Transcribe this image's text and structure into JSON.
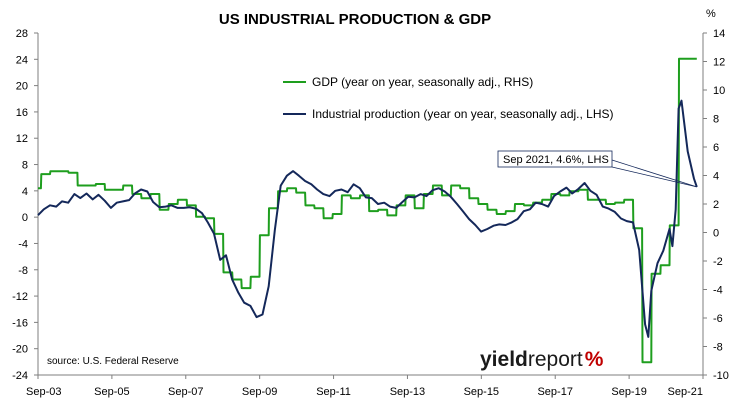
{
  "chart_data": {
    "type": "line",
    "title": "US INDUSTRIAL PRODUCTION & GDP",
    "right_axis_unit": "%",
    "x_tick_labels": [
      "Sep-03",
      "Sep-05",
      "Sep-07",
      "Sep-09",
      "Sep-11",
      "Sep-13",
      "Sep-15",
      "Sep-17",
      "Sep-19",
      "Sep-21"
    ],
    "x_range": [
      2003.67,
      2021.92
    ],
    "left_axis": {
      "ticks": [
        28,
        24,
        20,
        16,
        12,
        8,
        4,
        0,
        -4,
        -8,
        -12,
        -16,
        -20,
        -24
      ],
      "range": [
        -24,
        28
      ]
    },
    "right_axis": {
      "ticks": [
        14,
        12,
        10,
        8,
        6,
        4,
        2,
        0,
        -2,
        -4,
        -6,
        -8,
        -10
      ],
      "range": [
        -10,
        14
      ]
    },
    "legend_position": "top-center",
    "series": [
      {
        "name": "GDP (year on year, seasonally adj., RHS)",
        "axis": "right",
        "color": "#1e9e1e",
        "points": [
          [
            2003.67,
            3.1
          ],
          [
            2003.75,
            3.1
          ],
          [
            2003.76,
            4.1
          ],
          [
            2004.0,
            4.1
          ],
          [
            2004.01,
            4.3
          ],
          [
            2004.25,
            4.3
          ],
          [
            2004.26,
            4.3
          ],
          [
            2004.5,
            4.3
          ],
          [
            2004.51,
            4.2
          ],
          [
            2004.75,
            4.2
          ],
          [
            2004.76,
            3.3
          ],
          [
            2005.0,
            3.3
          ],
          [
            2005.01,
            3.3
          ],
          [
            2005.25,
            3.3
          ],
          [
            2005.26,
            3.4
          ],
          [
            2005.5,
            3.4
          ],
          [
            2005.51,
            3.0
          ],
          [
            2005.75,
            3.0
          ],
          [
            2005.76,
            3.0
          ],
          [
            2006.0,
            3.0
          ],
          [
            2006.01,
            3.3
          ],
          [
            2006.25,
            3.3
          ],
          [
            2006.26,
            2.7
          ],
          [
            2006.5,
            2.7
          ],
          [
            2006.51,
            2.4
          ],
          [
            2006.75,
            2.4
          ],
          [
            2006.76,
            2.7
          ],
          [
            2007.0,
            2.7
          ],
          [
            2007.01,
            1.6
          ],
          [
            2007.25,
            1.6
          ],
          [
            2007.26,
            2.0
          ],
          [
            2007.5,
            2.0
          ],
          [
            2007.51,
            2.3
          ],
          [
            2007.75,
            2.3
          ],
          [
            2007.76,
            1.9
          ],
          [
            2008.0,
            1.9
          ],
          [
            2008.01,
            1.1
          ],
          [
            2008.25,
            1.1
          ],
          [
            2008.26,
            1.0
          ],
          [
            2008.5,
            1.0
          ],
          [
            2008.51,
            -0.1
          ],
          [
            2008.75,
            -0.1
          ],
          [
            2008.76,
            -2.8
          ],
          [
            2009.0,
            -2.8
          ],
          [
            2009.01,
            -3.3
          ],
          [
            2009.25,
            -3.3
          ],
          [
            2009.26,
            -3.9
          ],
          [
            2009.5,
            -3.9
          ],
          [
            2009.51,
            -3.1
          ],
          [
            2009.75,
            -3.1
          ],
          [
            2009.76,
            -0.2
          ],
          [
            2010.0,
            -0.2
          ],
          [
            2010.01,
            1.7
          ],
          [
            2010.25,
            1.7
          ],
          [
            2010.26,
            2.9
          ],
          [
            2010.5,
            2.9
          ],
          [
            2010.51,
            3.1
          ],
          [
            2010.75,
            3.1
          ],
          [
            2010.76,
            2.8
          ],
          [
            2011.0,
            2.8
          ],
          [
            2011.01,
            1.9
          ],
          [
            2011.25,
            1.9
          ],
          [
            2011.26,
            1.7
          ],
          [
            2011.5,
            1.7
          ],
          [
            2011.51,
            1.0
          ],
          [
            2011.75,
            1.0
          ],
          [
            2011.76,
            1.3
          ],
          [
            2012.0,
            1.3
          ],
          [
            2012.01,
            2.6
          ],
          [
            2012.25,
            2.6
          ],
          [
            2012.26,
            2.4
          ],
          [
            2012.5,
            2.4
          ],
          [
            2012.51,
            2.6
          ],
          [
            2012.75,
            2.6
          ],
          [
            2012.76,
            1.5
          ],
          [
            2013.0,
            1.5
          ],
          [
            2013.01,
            1.6
          ],
          [
            2013.25,
            1.6
          ],
          [
            2013.26,
            1.2
          ],
          [
            2013.5,
            1.2
          ],
          [
            2013.51,
            1.9
          ],
          [
            2013.75,
            1.9
          ],
          [
            2013.76,
            2.6
          ],
          [
            2014.0,
            2.6
          ],
          [
            2014.01,
            1.7
          ],
          [
            2014.25,
            1.7
          ],
          [
            2014.26,
            2.7
          ],
          [
            2014.5,
            2.7
          ],
          [
            2014.51,
            3.3
          ],
          [
            2014.75,
            3.3
          ],
          [
            2014.76,
            2.6
          ],
          [
            2015.0,
            2.6
          ],
          [
            2015.01,
            3.3
          ],
          [
            2015.25,
            3.3
          ],
          [
            2015.26,
            3.1
          ],
          [
            2015.5,
            3.1
          ],
          [
            2015.51,
            2.4
          ],
          [
            2015.75,
            2.4
          ],
          [
            2015.76,
            2.0
          ],
          [
            2016.0,
            2.0
          ],
          [
            2016.01,
            1.6
          ],
          [
            2016.25,
            1.6
          ],
          [
            2016.26,
            1.3
          ],
          [
            2016.5,
            1.3
          ],
          [
            2016.51,
            1.5
          ],
          [
            2016.75,
            1.5
          ],
          [
            2016.76,
            2.0
          ],
          [
            2017.0,
            2.0
          ],
          [
            2017.01,
            1.9
          ],
          [
            2017.25,
            1.9
          ],
          [
            2017.26,
            2.1
          ],
          [
            2017.5,
            2.1
          ],
          [
            2017.51,
            2.3
          ],
          [
            2017.75,
            2.3
          ],
          [
            2017.76,
            2.7
          ],
          [
            2018.0,
            2.7
          ],
          [
            2018.01,
            2.6
          ],
          [
            2018.25,
            2.6
          ],
          [
            2018.26,
            2.9
          ],
          [
            2018.5,
            2.9
          ],
          [
            2018.51,
            3.0
          ],
          [
            2018.75,
            3.0
          ],
          [
            2018.76,
            2.3
          ],
          [
            2019.0,
            2.3
          ],
          [
            2019.01,
            2.3
          ],
          [
            2019.25,
            2.3
          ],
          [
            2019.26,
            2.0
          ],
          [
            2019.5,
            2.0
          ],
          [
            2019.51,
            2.1
          ],
          [
            2019.75,
            2.1
          ],
          [
            2019.76,
            2.3
          ],
          [
            2020.0,
            2.3
          ],
          [
            2020.01,
            0.3
          ],
          [
            2020.25,
            0.3
          ],
          [
            2020.26,
            -9.1
          ],
          [
            2020.5,
            -9.1
          ],
          [
            2020.51,
            -2.9
          ],
          [
            2020.75,
            -2.9
          ],
          [
            2020.76,
            -2.3
          ],
          [
            2021.0,
            -2.3
          ],
          [
            2021.01,
            0.5
          ],
          [
            2021.25,
            0.5
          ],
          [
            2021.26,
            12.2
          ],
          [
            2021.5,
            12.2
          ],
          [
            2021.51,
            12.2
          ],
          [
            2021.75,
            12.2
          ]
        ]
      },
      {
        "name": "Industrial production (year on year, seasonally adj., LHS)",
        "axis": "left",
        "color": "#14285a",
        "points": [
          [
            2003.67,
            0.3
          ],
          [
            2003.83,
            1.2
          ],
          [
            2004.0,
            1.8
          ],
          [
            2004.17,
            1.6
          ],
          [
            2004.33,
            2.4
          ],
          [
            2004.5,
            2.2
          ],
          [
            2004.67,
            3.5
          ],
          [
            2004.83,
            2.9
          ],
          [
            2005.0,
            3.6
          ],
          [
            2005.17,
            2.7
          ],
          [
            2005.33,
            3.4
          ],
          [
            2005.5,
            2.5
          ],
          [
            2005.67,
            1.4
          ],
          [
            2005.83,
            2.2
          ],
          [
            2006.0,
            2.4
          ],
          [
            2006.17,
            2.6
          ],
          [
            2006.33,
            3.6
          ],
          [
            2006.5,
            4.2
          ],
          [
            2006.67,
            3.9
          ],
          [
            2006.83,
            2.3
          ],
          [
            2007.0,
            1.5
          ],
          [
            2007.17,
            1.6
          ],
          [
            2007.33,
            1.8
          ],
          [
            2007.5,
            1.4
          ],
          [
            2007.67,
            1.4
          ],
          [
            2007.83,
            1.5
          ],
          [
            2008.0,
            1.3
          ],
          [
            2008.17,
            0.6
          ],
          [
            2008.33,
            -0.8
          ],
          [
            2008.5,
            -2.5
          ],
          [
            2008.67,
            -6.5
          ],
          [
            2008.83,
            -5.8
          ],
          [
            2009.0,
            -9.5
          ],
          [
            2009.17,
            -11.5
          ],
          [
            2009.33,
            -13.0
          ],
          [
            2009.5,
            -13.5
          ],
          [
            2009.67,
            -15.2
          ],
          [
            2009.83,
            -14.8
          ],
          [
            2010.0,
            -10.5
          ],
          [
            2010.17,
            -2.0
          ],
          [
            2010.33,
            4.8
          ],
          [
            2010.5,
            6.3
          ],
          [
            2010.67,
            7.0
          ],
          [
            2010.83,
            6.3
          ],
          [
            2011.0,
            5.5
          ],
          [
            2011.17,
            5.0
          ],
          [
            2011.33,
            4.2
          ],
          [
            2011.5,
            3.5
          ],
          [
            2011.67,
            3.2
          ],
          [
            2011.83,
            4.0
          ],
          [
            2012.0,
            4.2
          ],
          [
            2012.17,
            3.8
          ],
          [
            2012.33,
            5.0
          ],
          [
            2012.5,
            4.4
          ],
          [
            2012.67,
            3.0
          ],
          [
            2012.83,
            2.9
          ],
          [
            2013.0,
            2.0
          ],
          [
            2013.17,
            2.2
          ],
          [
            2013.33,
            1.6
          ],
          [
            2013.5,
            1.4
          ],
          [
            2013.67,
            2.3
          ],
          [
            2013.83,
            3.1
          ],
          [
            2014.0,
            3.0
          ],
          [
            2014.17,
            3.5
          ],
          [
            2014.33,
            3.2
          ],
          [
            2014.5,
            4.1
          ],
          [
            2014.67,
            4.4
          ],
          [
            2014.83,
            3.9
          ],
          [
            2015.0,
            3.1
          ],
          [
            2015.17,
            2.0
          ],
          [
            2015.33,
            0.9
          ],
          [
            2015.5,
            -0.3
          ],
          [
            2015.67,
            -1.2
          ],
          [
            2015.83,
            -2.2
          ],
          [
            2016.0,
            -1.8
          ],
          [
            2016.17,
            -1.3
          ],
          [
            2016.33,
            -1.1
          ],
          [
            2016.5,
            -1.2
          ],
          [
            2016.67,
            -0.8
          ],
          [
            2016.83,
            -0.3
          ],
          [
            2017.0,
            0.9
          ],
          [
            2017.17,
            1.2
          ],
          [
            2017.33,
            2.2
          ],
          [
            2017.5,
            2.0
          ],
          [
            2017.67,
            1.6
          ],
          [
            2017.83,
            3.2
          ],
          [
            2018.0,
            3.9
          ],
          [
            2018.17,
            4.5
          ],
          [
            2018.33,
            3.6
          ],
          [
            2018.5,
            4.3
          ],
          [
            2018.67,
            5.2
          ],
          [
            2018.83,
            4.0
          ],
          [
            2019.0,
            3.4
          ],
          [
            2019.17,
            1.6
          ],
          [
            2019.33,
            1.3
          ],
          [
            2019.5,
            0.8
          ],
          [
            2019.67,
            -0.2
          ],
          [
            2019.83,
            -0.6
          ],
          [
            2020.0,
            -0.8
          ],
          [
            2020.17,
            -5.0
          ],
          [
            2020.33,
            -16.3
          ],
          [
            2020.42,
            -18.2
          ],
          [
            2020.5,
            -11.2
          ],
          [
            2020.67,
            -7.0
          ],
          [
            2020.83,
            -5.1
          ],
          [
            2021.0,
            -1.8
          ],
          [
            2021.08,
            -4.4
          ],
          [
            2021.17,
            1.2
          ],
          [
            2021.25,
            16.5
          ],
          [
            2021.33,
            17.7
          ],
          [
            2021.5,
            10.0
          ],
          [
            2021.67,
            5.9
          ],
          [
            2021.75,
            4.6
          ]
        ]
      }
    ],
    "annotation": {
      "text": "Sep 2021, 4.6%, LHS",
      "x": 2021.75,
      "y": 4.6
    },
    "source": "source: U.S. Federal Reserve",
    "logo": {
      "part1": "yield",
      "part2": "report",
      "part3": "%"
    }
  }
}
